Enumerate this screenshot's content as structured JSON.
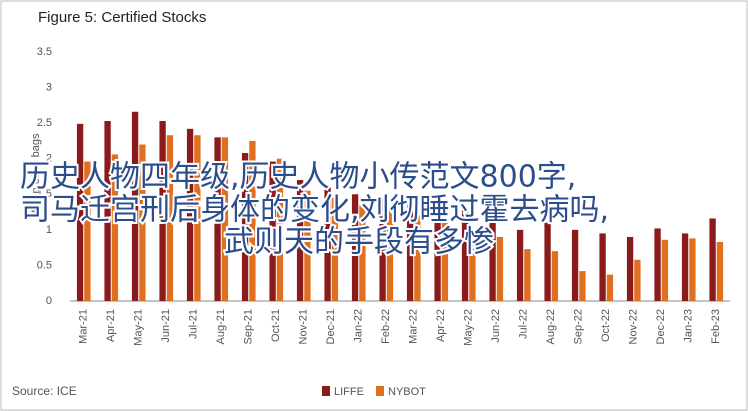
{
  "chart_data": {
    "type": "bar",
    "title": "Figure 5: Certified Stocks",
    "y_label": "Million 60kg bags",
    "source": "Source: ICE",
    "categories": [
      "Mar-21",
      "Apr-21",
      "May-21",
      "Jun-21",
      "Jul-21",
      "Aug-21",
      "Sep-21",
      "Oct-21",
      "Nov-21",
      "Dec-21",
      "Jan-22",
      "Feb-22",
      "Mar-22",
      "Apr-22",
      "May-22",
      "Jun-22",
      "Jul-22",
      "Aug-22",
      "Sep-22",
      "Oct-22",
      "Nov-22",
      "Dec-22",
      "Jan-23",
      "Feb-23"
    ],
    "series": [
      {
        "name": "LIFFE",
        "color": "#8b1a1a",
        "values": [
          2.49,
          2.53,
          2.66,
          2.53,
          2.42,
          2.3,
          2.08,
          1.96,
          1.7,
          1.6,
          1.5,
          1.45,
          1.4,
          1.35,
          1.3,
          1.25,
          1.0,
          1.1,
          1.0,
          0.95,
          0.9,
          1.02,
          0.95,
          1.16
        ]
      },
      {
        "name": "NYBOT",
        "color": "#e07020",
        "values": [
          1.96,
          2.06,
          2.2,
          2.33,
          2.33,
          2.3,
          2.25,
          2.0,
          1.55,
          1.45,
          1.35,
          1.3,
          1.2,
          1.1,
          1.0,
          0.9,
          0.73,
          0.7,
          0.42,
          0.37,
          0.58,
          0.86,
          0.88,
          0.83
        ]
      }
    ],
    "ylim": [
      0,
      3.5
    ],
    "yticks": [
      0,
      0.5,
      1,
      1.5,
      2,
      2.5,
      3,
      3.5
    ],
    "grid": false,
    "overlay_text": [
      "历史人物四年级,历史人物小传范文800字,",
      "司马迁宫刑后身体的变化,刘彻睡过霍去病吗,",
      "武则天的手段有多惨"
    ]
  }
}
